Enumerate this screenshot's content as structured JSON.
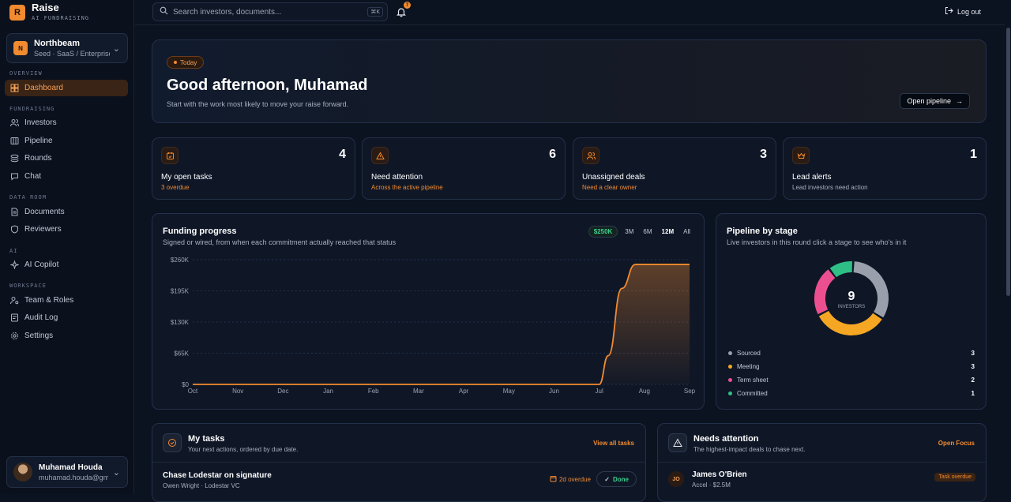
{
  "brand": {
    "logo": "R",
    "name": "Raise",
    "sub": "AI FUNDRAISING"
  },
  "org": {
    "logo": "N",
    "name": "Northbeam",
    "sub": "Seed · SaaS / Enterprise"
  },
  "nav": {
    "overview": "OVERVIEW",
    "dashboard": "Dashboard",
    "fundraising": "FUNDRAISING",
    "investors": "Investors",
    "pipeline": "Pipeline",
    "rounds": "Rounds",
    "chat": "Chat",
    "data_room": "DATA ROOM",
    "documents": "Documents",
    "reviewers": "Reviewers",
    "ai": "AI",
    "copilot": "AI Copilot",
    "workspace": "WORKSPACE",
    "team": "Team & Roles",
    "audit": "Audit Log",
    "settings": "Settings"
  },
  "user": {
    "name": "Muhamad Houda",
    "email": "muhamad.houda@gmail.com"
  },
  "topbar": {
    "search_placeholder": "Search investors, documents...",
    "shortcut": "⌘K",
    "notifications": "7",
    "logout": "Log out"
  },
  "hero": {
    "badge": "Today",
    "title": "Good afternoon, Muhamad",
    "subtitle": "Start with the work most likely to move your raise forward.",
    "cta": "Open pipeline"
  },
  "stats": [
    {
      "value": "4",
      "label": "My open tasks",
      "sub": "3 overdue",
      "sub_color": "#f28a2f"
    },
    {
      "value": "6",
      "label": "Need attention",
      "sub": "Across the active pipeline",
      "sub_color": "#f28a2f"
    },
    {
      "value": "3",
      "label": "Unassigned deals",
      "sub": "Need a clear owner",
      "sub_color": "#f28a2f"
    },
    {
      "value": "1",
      "label": "Lead alerts",
      "sub": "Lead investors need action",
      "sub_color": "#a7afbf"
    }
  ],
  "funding": {
    "title": "Funding progress",
    "subtitle": "Signed or wired, from when each commitment actually reached that status",
    "total": "$250K",
    "ranges": [
      "3M",
      "6M",
      "12M",
      "All"
    ],
    "selected": "12M"
  },
  "chart_data": [
    {
      "type": "area",
      "title": "Funding progress",
      "categories": [
        "Oct",
        "Nov",
        "Dec",
        "Jan",
        "Feb",
        "Mar",
        "Apr",
        "May",
        "Jun",
        "Jul",
        "Aug",
        "Sep"
      ],
      "yticks": [
        "$0",
        "$65K",
        "$130K",
        "$195K",
        "$260K"
      ],
      "ylim": [
        0,
        260000
      ],
      "x": [
        "Oct",
        "Nov",
        "Dec",
        "Jan",
        "Feb",
        "Mar",
        "Apr",
        "May",
        "Jun",
        "Jul",
        "Jul",
        "Aug",
        "Aug",
        "Sep"
      ],
      "points": [
        [
          0,
          0
        ],
        [
          1,
          0
        ],
        [
          2,
          0
        ],
        [
          3,
          0
        ],
        [
          4,
          0
        ],
        [
          5,
          0
        ],
        [
          6,
          0
        ],
        [
          7,
          0
        ],
        [
          8,
          0
        ],
        [
          9,
          0
        ],
        [
          9.2,
          60000
        ],
        [
          9.5,
          200000
        ],
        [
          9.8,
          250000
        ],
        [
          11,
          250000
        ]
      ],
      "color": "#f28a2f",
      "grid": true
    },
    {
      "type": "pie",
      "title": "Pipeline by stage",
      "center_value": "9",
      "center_label": "INVESTORS",
      "series": [
        {
          "name": "Sourced",
          "value": 3,
          "color": "#9aa0ab"
        },
        {
          "name": "Meeting",
          "value": 3,
          "color": "#f5a623"
        },
        {
          "name": "Term sheet",
          "value": 2,
          "color": "#ec4f8f"
        },
        {
          "name": "Committed",
          "value": 1,
          "color": "#2fbf86"
        }
      ]
    }
  ],
  "stage": {
    "title": "Pipeline by stage",
    "subtitle": "Live investors in this round click a stage to see who's in it"
  },
  "tasks": {
    "title": "My tasks",
    "subtitle": "Your next actions, ordered by due date.",
    "link": "View all tasks",
    "item_title": "Chase Lodestar on signature",
    "item_sub": "Owen Wright · Lodestar VC",
    "due": "2d overdue",
    "done": "Done"
  },
  "attention": {
    "title": "Needs attention",
    "subtitle": "The highest-impact deals to chase next.",
    "link": "Open Focus",
    "item_initials": "JO",
    "item_title": "James O'Brien",
    "item_sub": "Accel · $2.5M",
    "tag": "Task overdue"
  }
}
